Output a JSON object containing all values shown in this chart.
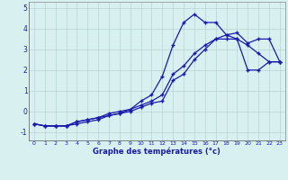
{
  "xlabel": "Graphe des températures (°c)",
  "background_color": "#d8f0f0",
  "grid_color": "#b8d4d4",
  "line_color": "#1a1aaa",
  "x_values": [
    0,
    1,
    2,
    3,
    4,
    5,
    6,
    7,
    8,
    9,
    10,
    11,
    12,
    13,
    14,
    15,
    16,
    17,
    18,
    19,
    20,
    21,
    22,
    23
  ],
  "line1": [
    -0.6,
    -0.7,
    -0.7,
    -0.7,
    -0.6,
    -0.5,
    -0.4,
    -0.2,
    -0.1,
    0.1,
    0.5,
    0.8,
    1.7,
    3.2,
    4.3,
    4.7,
    4.3,
    4.3,
    3.7,
    3.5,
    2.0,
    2.0,
    2.4,
    2.4
  ],
  "line2": [
    -0.6,
    -0.7,
    -0.7,
    -0.7,
    -0.5,
    -0.4,
    -0.3,
    -0.2,
    -0.1,
    0.0,
    0.2,
    0.4,
    0.5,
    1.5,
    1.8,
    2.5,
    3.0,
    3.5,
    3.7,
    3.8,
    3.3,
    3.5,
    3.5,
    2.4
  ],
  "line3": [
    -0.6,
    -0.7,
    -0.7,
    -0.7,
    -0.5,
    -0.4,
    -0.3,
    -0.1,
    0.0,
    0.1,
    0.3,
    0.5,
    0.8,
    1.8,
    2.2,
    2.8,
    3.2,
    3.5,
    3.5,
    3.5,
    3.2,
    2.8,
    2.4,
    2.4
  ],
  "xlim": [
    -0.5,
    23.5
  ],
  "ylim": [
    -1.4,
    5.3
  ],
  "yticks": [
    -1,
    0,
    1,
    2,
    3,
    4,
    5
  ],
  "xticks": [
    0,
    1,
    2,
    3,
    4,
    5,
    6,
    7,
    8,
    9,
    10,
    11,
    12,
    13,
    14,
    15,
    16,
    17,
    18,
    19,
    20,
    21,
    22,
    23
  ]
}
